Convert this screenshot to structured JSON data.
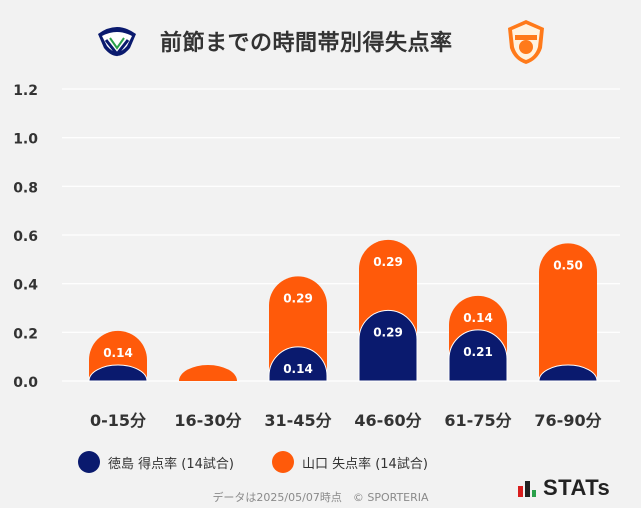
{
  "header": {
    "title": "前節までの時間帯別得失点率",
    "home_logo_text": "TOKUSHIMA VORTIS",
    "away_logo_text": "RENOFA"
  },
  "colors": {
    "home": "#0a1a6e",
    "away": "#ff5a0a",
    "grid": "#ffffff",
    "text": "#333333"
  },
  "chart_data": {
    "type": "bar",
    "title": "前節までの時間帯別得失点率",
    "categories": [
      "0-15分",
      "16-30分",
      "31-45分",
      "46-60分",
      "61-75分",
      "76-90分"
    ],
    "series": [
      {
        "name": "徳島 得点率 (14試合)",
        "values": [
          0.0,
          null,
          0.14,
          0.29,
          0.21,
          0.0
        ],
        "labels": [
          "",
          "",
          "0.14",
          "0.29",
          "0.21",
          ""
        ]
      },
      {
        "name": "山口 失点率 (14試合)",
        "values": [
          0.14,
          0.0,
          0.29,
          0.29,
          0.14,
          0.5
        ],
        "labels": [
          "0.14",
          "",
          "0.29",
          "0.29",
          "0.14",
          "0.50"
        ]
      }
    ],
    "ylim": [
      0,
      1.2
    ],
    "yticks": [
      "0.0",
      "0.2",
      "0.4",
      "0.6",
      "0.8",
      "1.0",
      "1.2"
    ],
    "grid": true,
    "legend": "bottom"
  },
  "legend": {
    "home_label": "徳島 得点率 (14試合)",
    "away_label": "山口 失点率 (14試合)"
  },
  "footer": {
    "note": "データは2025/05/07時点　© SPORTERIA",
    "brand": "STATs"
  }
}
